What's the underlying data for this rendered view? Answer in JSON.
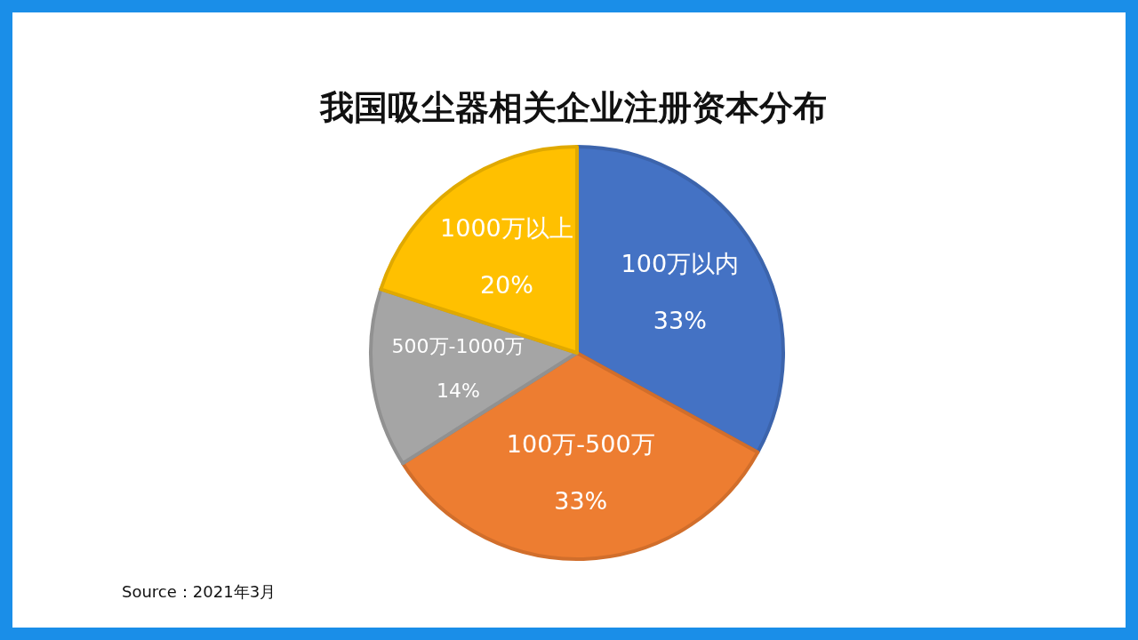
{
  "chart_data": {
    "type": "pie",
    "title": "我国吸尘器相关企业注册资本分布",
    "categories": [
      "100万以内",
      "100万-500万",
      "500万-1000万",
      "1000万以上"
    ],
    "values": [
      33,
      33,
      14,
      20
    ],
    "colors": [
      "#4472c4",
      "#ed7d31",
      "#a5a5a5",
      "#ffc000"
    ],
    "value_labels": [
      "33%",
      "33%",
      "14%",
      "20%"
    ],
    "annotations": [
      "Source：2021年3月"
    ]
  }
}
